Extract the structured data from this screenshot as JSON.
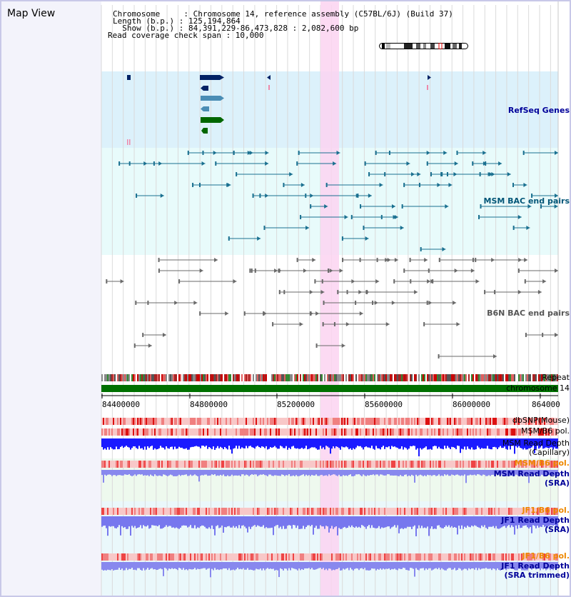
{
  "title": "Map View",
  "header": {
    "chromosome_line": "Chromosome     : Chromosome 14, reference assembly (C57BL/6J) (Build 37)",
    "length_line": "Length (b.p.) : 125,194,864",
    "show_line": "  Show (b.p.) : 84,391,229-86,473,828 : 2,082,600 bp",
    "read_cov_line": "Read coverage check span : 10,000"
  },
  "tracks": {
    "refseq": "RefSeq Genes",
    "msm_bac": "MSM BAC end pairs",
    "b6n_bac": "B6N BAC end pairs",
    "repeat": "Repeat",
    "chromosome": "chromosome 14",
    "dbsnp": "dbSNP(Mouse)",
    "msm_b6_pol_1": "MSM/B6 pol.",
    "msm_read_depth_cap_1": "MSM Read Depth",
    "msm_read_depth_cap_2": "(Capillary)",
    "msm_b6_pol_2": "MSM/B6 pol.",
    "msm_read_depth_sra_1": "MSM Read Depth",
    "msm_read_depth_sra_2": "(SRA)",
    "jf1_b6_pol_1": "JF1/B6 pol.",
    "jf1_read_depth_sra_1": "JF1 Read Depth",
    "jf1_read_depth_sra_2": "(SRA)",
    "jf1_b6_pol_2": "JF1/B6 pol.",
    "jf1_read_depth_trim_1": "JF1 Read Depth",
    "jf1_read_depth_trim_2": "(SRA trimmed)"
  },
  "axis_ticks": [
    "84400000",
    "84800000",
    "85200000",
    "85600000",
    "86000000",
    "864000"
  ],
  "colors": {
    "refseq_bg": "#dcf1fb",
    "msm_bac_bg": "#e8fbfb",
    "highlight": "#fbd4f1",
    "chromosome_bar": "#007000",
    "label_blue": "#000099",
    "label_teal": "#005577",
    "label_orange": "#ee8800"
  }
}
